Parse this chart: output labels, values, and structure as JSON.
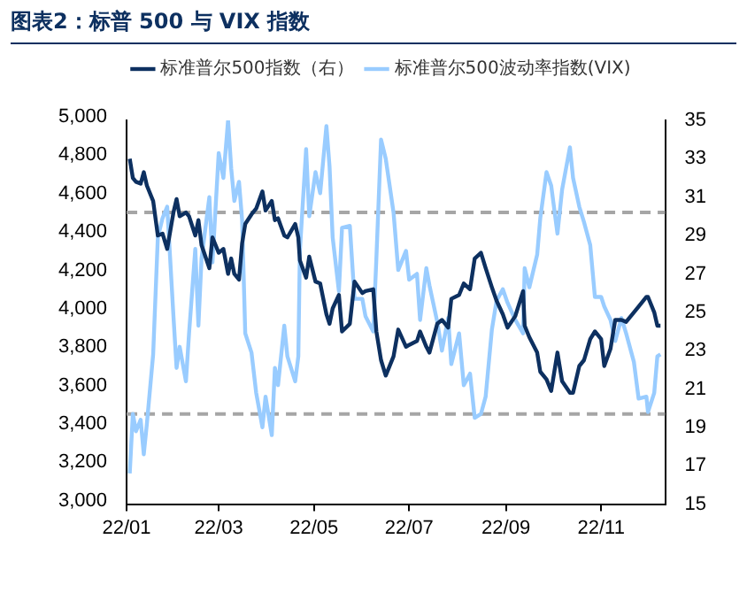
{
  "chart_data": {
    "type": "line",
    "title": "图表2：标普 500 与 VIX 指数",
    "x": [
      "--01-03",
      "--01-05",
      "--01-07",
      "--01-10",
      "--01-12",
      "--01-14",
      "--01-18",
      "--01-21",
      "--01-24",
      "--01-27",
      "--01-31",
      "--02-02",
      "--02-04",
      "--02-08",
      "--02-10",
      "--02-14",
      "--02-16",
      "--02-18",
      "--02-23",
      "--02-25",
      "--03-01",
      "--03-04",
      "--03-07",
      "--03-09",
      "--03-11",
      "--03-14",
      "--03-16",
      "--03-18",
      "--03-22",
      "--03-25",
      "--03-29",
      "--03-31",
      "--04-04",
      "--04-06",
      "--04-08",
      "--04-12",
      "--04-14",
      "--04-19",
      "--04-21",
      "--04-22",
      "--04-26",
      "--04-28",
      "--05-02",
      "--05-05",
      "--05-09",
      "--05-11",
      "--05-13",
      "--05-17",
      "--05-19",
      "--05-24",
      "--05-27",
      "--06-01",
      "--06-03",
      "--06-08",
      "--06-10",
      "--06-13",
      "--06-16",
      "--06-21",
      "--06-24",
      "--06-29",
      "--07-01",
      "--07-06",
      "--07-08",
      "--07-12",
      "--07-14",
      "--07-19",
      "--07-22",
      "--07-26",
      "--07-28",
      "--08-02",
      "--08-05",
      "--08-09",
      "--08-12",
      "--08-16",
      "--08-19",
      "--08-23",
      "--08-26",
      "--08-30",
      "--09-02",
      "--09-07",
      "--09-12",
      "--09-13",
      "--09-16",
      "--09-21",
      "--09-23",
      "--09-27",
      "--09-30",
      "--10-04",
      "--10-07",
      "--10-12",
      "--10-14",
      "--10-18",
      "--10-21",
      "--10-25",
      "--10-28",
      "--11-01",
      "--11-03",
      "--11-07",
      "--11-10",
      "--11-14",
      "--11-17",
      "--11-22",
      "--11-25",
      "--11-30",
      "--12-01",
      "--12-05",
      "--12-07",
      "--12-09"
    ],
    "series": [
      {
        "name": "标准普尔500指数（右）",
        "color": "#0d3060",
        "axis": "y",
        "values": [
          4800,
          4700,
          4680,
          4670,
          4730,
          4660,
          4580,
          4400,
          4410,
          4330,
          4520,
          4590,
          4500,
          4520,
          4500,
          4400,
          4480,
          4350,
          4230,
          4390,
          4310,
          4330,
          4200,
          4280,
          4200,
          4170,
          4360,
          4460,
          4510,
          4540,
          4630,
          4530,
          4580,
          4480,
          4490,
          4400,
          4390,
          4460,
          4390,
          4270,
          4180,
          4290,
          4160,
          4150,
          3990,
          3940,
          4020,
          4090,
          3900,
          3940,
          4160,
          4100,
          4110,
          4120,
          3900,
          3750,
          3670,
          3770,
          3910,
          3820,
          3830,
          3850,
          3900,
          3820,
          3790,
          3940,
          3960,
          3920,
          4070,
          4090,
          4150,
          4120,
          4280,
          4310,
          4230,
          4130,
          4060,
          3990,
          3920,
          3980,
          4110,
          3930,
          3870,
          3790,
          3690,
          3650,
          3590,
          3790,
          3640,
          3580,
          3580,
          3720,
          3750,
          3860,
          3900,
          3860,
          3720,
          3810,
          3960,
          3960,
          3950,
          4000,
          4030,
          4080,
          4080,
          4000,
          3930,
          3930
        ]
      },
      {
        "name": "标准普尔500波动率指数(VIX)",
        "color": "#99ccff",
        "axis": "y2",
        "values": [
          16.6,
          19.7,
          18.8,
          19.4,
          17.6,
          19.2,
          22.8,
          28.9,
          29.9,
          30.5,
          24.8,
          22.1,
          23.2,
          21.4,
          23.9,
          28.3,
          24.3,
          27.8,
          31.0,
          27.6,
          33.3,
          32.0,
          35,
          32.5,
          30.8,
          31.8,
          29.8,
          23.9,
          22.9,
          20.8,
          19.0,
          20.6,
          18.6,
          22.1,
          21.2,
          24.3,
          22.7,
          21.4,
          22.7,
          28.2,
          33.5,
          30.0,
          32.3,
          31.2,
          34.7,
          32.6,
          28.9,
          26.1,
          29.4,
          29.5,
          25.7,
          25.7,
          24.8,
          24.0,
          27.8,
          34.0,
          33.0,
          30.2,
          27.2,
          28.2,
          26.7,
          27.0,
          24.6,
          27.3,
          26.4,
          24.5,
          23.0,
          24.7,
          22.3,
          23.9,
          21.2,
          21.8,
          19.5,
          19.7,
          20.6,
          24.1,
          25.6,
          26.2,
          25.5,
          24.6,
          23.9,
          27.3,
          26.3,
          28.0,
          29.9,
          32.3,
          31.6,
          29.1,
          31.4,
          33.6,
          32.0,
          30.5,
          29.7,
          28.5,
          25.8,
          25.8,
          25.3,
          24.6,
          23.5,
          24.7,
          23.9,
          22.4,
          20.5,
          20.6,
          19.8,
          20.8,
          22.7,
          22.8
        ]
      }
    ],
    "xlim": [
      "--01-01",
      "--12-12"
    ],
    "xticks": [
      {
        "value": "--01-01",
        "label": "22/01"
      },
      {
        "value": "--03-01",
        "label": "22/03"
      },
      {
        "value": "--05-01",
        "label": "22/05"
      },
      {
        "value": "--07-01",
        "label": "22/07"
      },
      {
        "value": "--09-01",
        "label": "22/09"
      },
      {
        "value": "--11-01",
        "label": "22/11"
      }
    ],
    "ylim": [
      3000,
      5000
    ],
    "yticks": [
      {
        "value": 3000,
        "label": "3,000"
      },
      {
        "value": 3200,
        "label": "3,200"
      },
      {
        "value": 3400,
        "label": "3,400"
      },
      {
        "value": 3600,
        "label": "3,600"
      },
      {
        "value": 3800,
        "label": "3,800"
      },
      {
        "value": 4000,
        "label": "4,000"
      },
      {
        "value": 4200,
        "label": "4,200"
      },
      {
        "value": 4400,
        "label": "4,400"
      },
      {
        "value": 4600,
        "label": "4,600"
      },
      {
        "value": 4800,
        "label": "4,800"
      },
      {
        "value": 5000,
        "label": "5,000"
      }
    ],
    "y2lim": [
      15,
      35
    ],
    "y2ticks": [
      15,
      17,
      19,
      21,
      23,
      25,
      27,
      29,
      31,
      33,
      35
    ],
    "ref_lines": [
      {
        "axis": "y2",
        "value": 30.2,
        "color": "#a6a6a6",
        "line_style": "dashed"
      },
      {
        "axis": "y2",
        "value": 19.7,
        "color": "#a6a6a6",
        "line_style": "dashed"
      }
    ],
    "grid": false,
    "legend": "top",
    "marker": "none",
    "line_style": "solid"
  }
}
